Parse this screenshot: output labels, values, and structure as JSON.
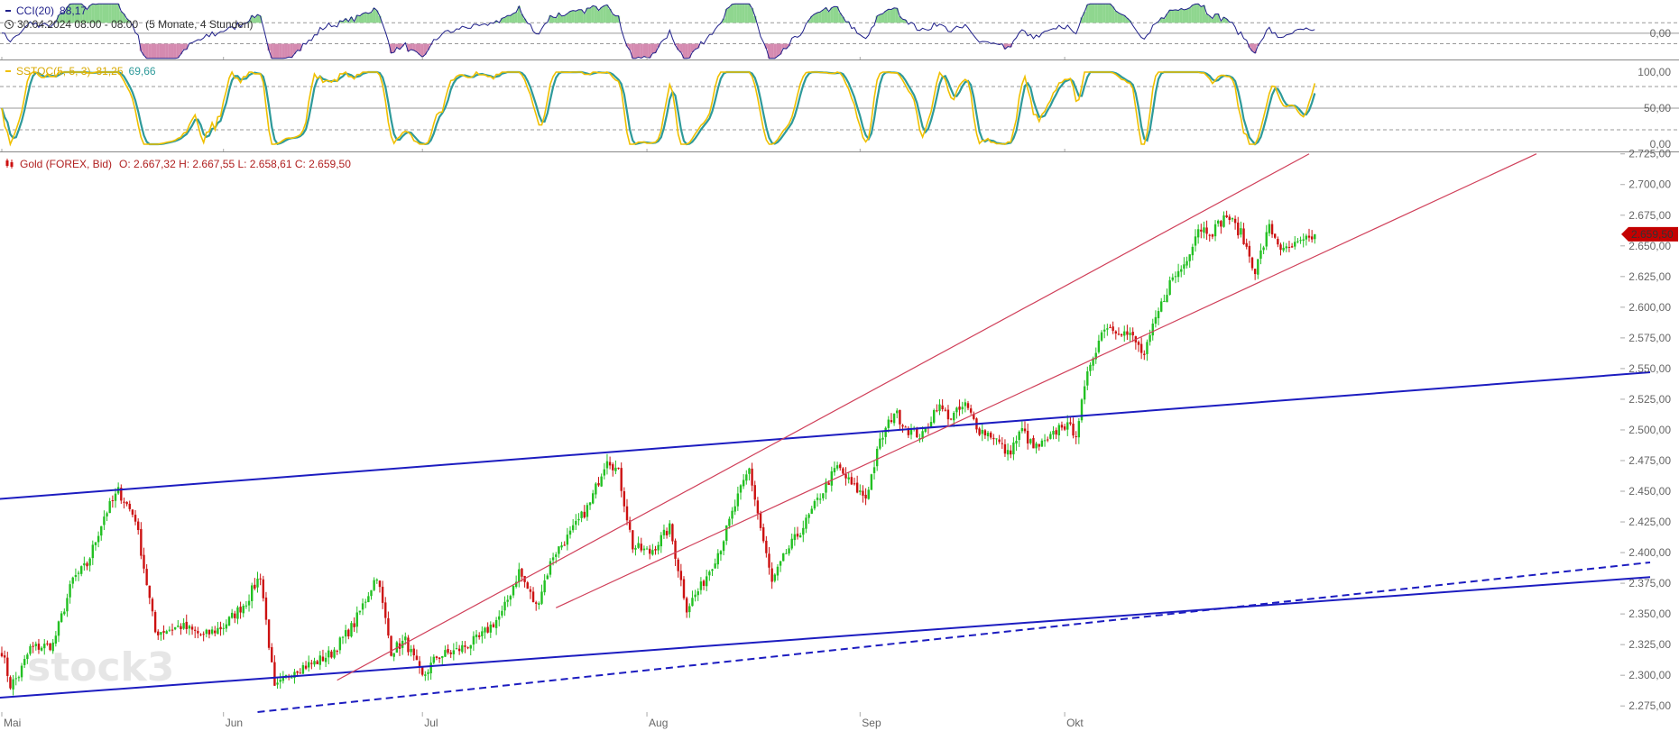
{
  "colors": {
    "cci_line": "#1f1f8a",
    "cci_fill_up": "#8fd68f",
    "cci_fill_down": "#d58ab0",
    "stoch_k": "#f0c000",
    "stoch_d": "#2e9a9a",
    "candle_up": "#22c022",
    "candle_down": "#cc1111",
    "channel": "#1c1cc0",
    "trend": "#d0405a",
    "price_badge": "#c40000",
    "grid": "#999999",
    "axis_text": "#666666"
  },
  "cci_panel": {
    "label": "CCI(20)",
    "value": "88,17",
    "timestamp": "30.04.2024 08:00 - 08:00",
    "range_note": "(5 Monate, 4 Stunden)",
    "icon": "clock-icon",
    "axis_ticks": [
      "0,00"
    ]
  },
  "stoch_panel": {
    "label": "SSTOC(5, 5, 3)",
    "value_k": "81,25",
    "value_d": "69,66",
    "axis_ticks": [
      "100,00",
      "50,00",
      "0,00"
    ]
  },
  "price_panel": {
    "label": "Gold (FOREX, Bid)",
    "ohlc": "O: 2.667,32  H: 2.667,55  L: 2.658,61  C: 2.659,50",
    "icon": "candlestick-icon",
    "last_price": "2.659,50",
    "watermark": "stock3"
  },
  "chart_data": {
    "type": "candlestick",
    "instrument": "Gold (FOREX, Bid)",
    "interval": "4 Stunden",
    "x_tick_labels": [
      "Mai",
      "Jun",
      "Jul",
      "Aug",
      "Sep",
      "Okt"
    ],
    "y_ticks": [
      2275,
      2300,
      2325,
      2350,
      2375,
      2400,
      2425,
      2450,
      2475,
      2500,
      2525,
      2550,
      2575,
      2600,
      2625,
      2650,
      2675,
      2700,
      2725
    ],
    "y_tick_labels": [
      "2.275,00",
      "2.300,00",
      "2.325,00",
      "2.350,00",
      "2.375,00",
      "2.400,00",
      "2.425,00",
      "2.450,00",
      "2.475,00",
      "2.500,00",
      "2.525,00",
      "2.550,00",
      "2.575,00",
      "2.600,00",
      "2.625,00",
      "2.650,00",
      "2.675,00",
      "2.700,00",
      "2.725,00"
    ],
    "ylim": [
      2270,
      2727
    ],
    "close_keypoints": [
      [
        0,
        2320
      ],
      [
        3,
        2292
      ],
      [
        6,
        2300
      ],
      [
        10,
        2322
      ],
      [
        18,
        2325
      ],
      [
        25,
        2378
      ],
      [
        30,
        2390
      ],
      [
        36,
        2430
      ],
      [
        41,
        2450
      ],
      [
        47,
        2428
      ],
      [
        54,
        2335
      ],
      [
        63,
        2340
      ],
      [
        71,
        2332
      ],
      [
        78,
        2340
      ],
      [
        86,
        2360
      ],
      [
        91,
        2382
      ],
      [
        96,
        2288
      ],
      [
        103,
        2305
      ],
      [
        110,
        2310
      ],
      [
        116,
        2318
      ],
      [
        124,
        2342
      ],
      [
        132,
        2382
      ],
      [
        137,
        2320
      ],
      [
        142,
        2328
      ],
      [
        148,
        2298
      ],
      [
        153,
        2315
      ],
      [
        160,
        2320
      ],
      [
        168,
        2330
      ],
      [
        176,
        2350
      ],
      [
        182,
        2385
      ],
      [
        188,
        2356
      ],
      [
        194,
        2398
      ],
      [
        200,
        2415
      ],
      [
        207,
        2440
      ],
      [
        213,
        2478
      ],
      [
        217,
        2465
      ],
      [
        222,
        2405
      ],
      [
        228,
        2400
      ],
      [
        235,
        2420
      ],
      [
        241,
        2355
      ],
      [
        246,
        2372
      ],
      [
        253,
        2405
      ],
      [
        259,
        2445
      ],
      [
        263,
        2468
      ],
      [
        267,
        2420
      ],
      [
        271,
        2375
      ],
      [
        276,
        2400
      ],
      [
        283,
        2425
      ],
      [
        290,
        2455
      ],
      [
        294,
        2470
      ],
      [
        299,
        2455
      ],
      [
        304,
        2445
      ],
      [
        309,
        2490
      ],
      [
        314,
        2515
      ],
      [
        319,
        2500
      ],
      [
        324,
        2495
      ],
      [
        329,
        2520
      ],
      [
        334,
        2510
      ],
      [
        339,
        2520
      ],
      [
        344,
        2500
      ],
      [
        349,
        2495
      ],
      [
        354,
        2480
      ],
      [
        359,
        2500
      ],
      [
        363,
        2485
      ],
      [
        368,
        2490
      ],
      [
        373,
        2505
      ],
      [
        378,
        2498
      ],
      [
        383,
        2555
      ],
      [
        388,
        2585
      ],
      [
        393,
        2582
      ],
      [
        398,
        2575
      ],
      [
        402,
        2560
      ],
      [
        406,
        2590
      ],
      [
        411,
        2620
      ],
      [
        416,
        2635
      ],
      [
        421,
        2665
      ],
      [
        426,
        2662
      ],
      [
        431,
        2675
      ],
      [
        436,
        2660
      ],
      [
        441,
        2630
      ],
      [
        446,
        2665
      ],
      [
        451,
        2645
      ],
      [
        455,
        2650
      ],
      [
        460,
        2655
      ],
      [
        462,
        2659.5
      ]
    ],
    "channel_upper": {
      "from": [
        -5,
        2443
      ],
      "to": [
        580,
        2547
      ]
    },
    "channel_lower": {
      "from": [
        -5,
        2281
      ],
      "to": [
        580,
        2380
      ]
    },
    "channel_lower_dashed": {
      "from": [
        90,
        2270
      ],
      "to": [
        580,
        2392
      ]
    },
    "trend_steep": {
      "from": [
        118,
        2296
      ],
      "to": [
        460,
        2725
      ]
    },
    "trend_shallow": {
      "from": [
        195,
        2355
      ],
      "to": [
        540,
        2725
      ]
    },
    "cci_range": [
      -250,
      300
    ],
    "stoch_range": [
      0,
      100
    ],
    "stoch_levels": [
      80,
      50,
      20
    ],
    "cci_levels": [
      100,
      0,
      -100
    ],
    "last_close": 2659.5
  }
}
